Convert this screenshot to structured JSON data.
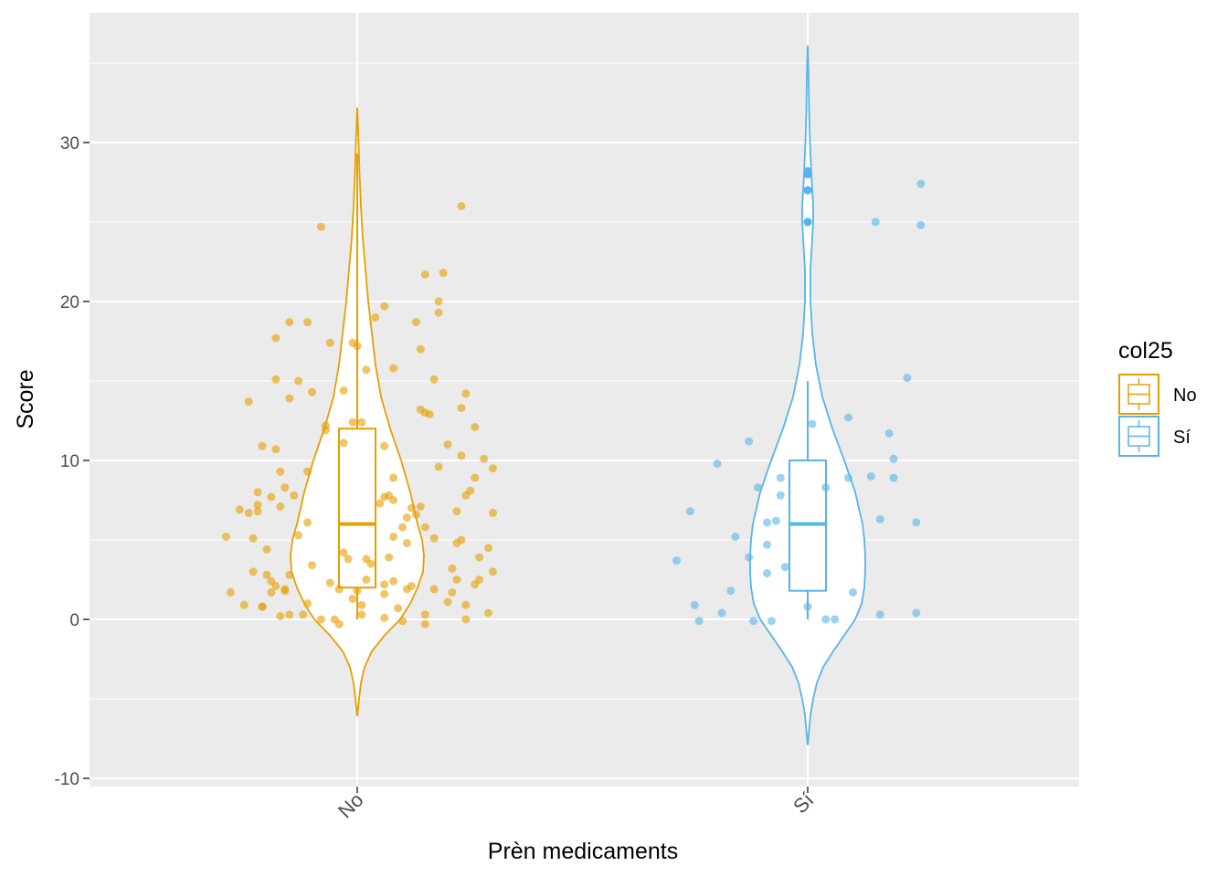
{
  "chart_data": {
    "type": "violin",
    "xlabel": "Prèn medicaments",
    "ylabel": "Score",
    "ylim": [
      -10,
      36
    ],
    "yticks": [
      -10,
      0,
      10,
      20,
      30
    ],
    "categories": [
      "No",
      "Sí"
    ],
    "x_tick_rotation": "45 degrees",
    "grid": true,
    "legend": {
      "title": "col25",
      "position": "right",
      "entries": [
        {
          "label": "No",
          "color": "#E69F00"
        },
        {
          "label": "Sí",
          "color": "#56B4E9"
        }
      ]
    },
    "series": [
      {
        "group": "No",
        "color": "#E69F00",
        "box": {
          "lower_whisker": 0,
          "q1": 2,
          "median": 6,
          "q3": 12,
          "upper_whisker": 29.3
        },
        "violin_range": [
          -6,
          32
        ],
        "points": [
          [
            -0.29,
            5.2
          ],
          [
            -0.28,
            1.7
          ],
          [
            -0.26,
            6.9
          ],
          [
            -0.25,
            0.9
          ],
          [
            -0.24,
            13.7
          ],
          [
            -0.24,
            6.7
          ],
          [
            -0.23,
            3.0
          ],
          [
            -0.23,
            5.1
          ],
          [
            -0.22,
            7.2
          ],
          [
            -0.22,
            6.8
          ],
          [
            -0.22,
            8.0
          ],
          [
            -0.21,
            10.9
          ],
          [
            -0.21,
            0.8
          ],
          [
            -0.21,
            0.8
          ],
          [
            -0.2,
            2.8
          ],
          [
            -0.2,
            4.4
          ],
          [
            -0.19,
            2.4
          ],
          [
            -0.19,
            1.7
          ],
          [
            -0.19,
            7.7
          ],
          [
            -0.18,
            17.7
          ],
          [
            -0.18,
            10.7
          ],
          [
            -0.18,
            2.1
          ],
          [
            -0.18,
            15.1
          ],
          [
            -0.17,
            9.3
          ],
          [
            -0.17,
            0.2
          ],
          [
            -0.17,
            7.1
          ],
          [
            -0.16,
            1.8
          ],
          [
            -0.16,
            8.3
          ],
          [
            -0.16,
            1.9
          ],
          [
            -0.15,
            0.3
          ],
          [
            -0.15,
            13.9
          ],
          [
            -0.15,
            18.7
          ],
          [
            -0.15,
            2.8
          ],
          [
            -0.14,
            7.8
          ],
          [
            -0.13,
            5.3
          ],
          [
            -0.13,
            15.0
          ],
          [
            -0.12,
            0.3
          ],
          [
            -0.11,
            18.7
          ],
          [
            -0.11,
            9.3
          ],
          [
            -0.11,
            6.1
          ],
          [
            -0.11,
            1.0
          ],
          [
            -0.1,
            3.4
          ],
          [
            -0.1,
            14.3
          ],
          [
            -0.08,
            0.0
          ],
          [
            -0.07,
            11.9
          ],
          [
            -0.07,
            12.2
          ],
          [
            -0.06,
            17.4
          ],
          [
            -0.06,
            2.3
          ],
          [
            -0.05,
            0.0
          ],
          [
            -0.04,
            -0.3
          ],
          [
            -0.04,
            1.9
          ],
          [
            -0.03,
            11.1
          ],
          [
            -0.03,
            4.2
          ],
          [
            -0.03,
            14.4
          ],
          [
            -0.02,
            3.8
          ],
          [
            -0.01,
            17.4
          ],
          [
            -0.01,
            12.4
          ],
          [
            -0.01,
            1.3
          ],
          [
            0.0,
            17.2
          ],
          [
            0.0,
            1.8
          ],
          [
            0.01,
            0.3
          ],
          [
            0.01,
            12.4
          ],
          [
            0.01,
            0.9
          ],
          [
            0.02,
            2.5
          ],
          [
            0.02,
            3.8
          ],
          [
            0.02,
            15.7
          ],
          [
            0.03,
            3.5
          ],
          [
            0.04,
            19.0
          ],
          [
            0.05,
            7.3
          ],
          [
            0.06,
            1.6
          ],
          [
            0.06,
            10.9
          ],
          [
            0.06,
            19.7
          ],
          [
            0.06,
            0.1
          ],
          [
            0.06,
            7.7
          ],
          [
            0.06,
            2.2
          ],
          [
            0.07,
            7.8
          ],
          [
            0.07,
            3.9
          ],
          [
            0.08,
            5.2
          ],
          [
            0.08,
            8.9
          ],
          [
            0.08,
            15.8
          ],
          [
            0.08,
            7.5
          ],
          [
            0.08,
            2.4
          ],
          [
            0.09,
            0.7
          ],
          [
            0.1,
            5.8
          ],
          [
            0.1,
            -0.1
          ],
          [
            0.11,
            1.9
          ],
          [
            0.11,
            4.8
          ],
          [
            0.11,
            6.4
          ],
          [
            0.12,
            7.0
          ],
          [
            0.12,
            2.1
          ],
          [
            0.13,
            18.7
          ],
          [
            0.13,
            6.6
          ],
          [
            0.14,
            17.0
          ],
          [
            0.14,
            7.1
          ],
          [
            0.14,
            13.2
          ],
          [
            0.15,
            5.8
          ],
          [
            0.15,
            0.3
          ],
          [
            0.15,
            -0.3
          ],
          [
            0.15,
            21.7
          ],
          [
            0.15,
            13.0
          ],
          [
            0.16,
            12.9
          ],
          [
            0.17,
            15.1
          ],
          [
            0.17,
            1.9
          ],
          [
            0.17,
            5.1
          ],
          [
            0.18,
            9.6
          ],
          [
            0.18,
            20.0
          ],
          [
            0.18,
            19.3
          ],
          [
            0.19,
            21.8
          ],
          [
            0.2,
            1.1
          ],
          [
            0.2,
            11.0
          ],
          [
            0.21,
            3.2
          ],
          [
            0.21,
            1.7
          ],
          [
            0.22,
            2.5
          ],
          [
            0.22,
            4.8
          ],
          [
            0.22,
            6.8
          ],
          [
            0.23,
            26.0
          ],
          [
            0.23,
            5.0
          ],
          [
            0.23,
            13.3
          ],
          [
            0.23,
            10.3
          ],
          [
            0.24,
            0.0
          ],
          [
            0.24,
            0.9
          ],
          [
            0.24,
            14.2
          ],
          [
            0.24,
            7.8
          ],
          [
            0.25,
            8.1
          ],
          [
            0.26,
            12.1
          ],
          [
            0.26,
            8.9
          ],
          [
            0.26,
            2.2
          ],
          [
            0.27,
            2.5
          ],
          [
            0.27,
            3.9
          ],
          [
            0.28,
            10.1
          ],
          [
            0.29,
            4.5
          ],
          [
            0.29,
            0.4
          ],
          [
            0.3,
            9.5
          ],
          [
            0.3,
            3.0
          ],
          [
            0.3,
            6.7
          ],
          [
            -0.08,
            24.7
          ]
        ]
      },
      {
        "group": "Sí",
        "color": "#56B4E9",
        "box": {
          "lower_whisker": 0,
          "q1": 1.8,
          "median": 6,
          "q3": 10,
          "upper_whisker": 15,
          "outliers": [
            25,
            25,
            27,
            27,
            28,
            28.2
          ]
        },
        "violin_range": [
          -8,
          36
        ],
        "points": [
          [
            -0.29,
            3.7
          ],
          [
            -0.26,
            6.8
          ],
          [
            -0.25,
            0.9
          ],
          [
            -0.24,
            -0.1
          ],
          [
            -0.2,
            9.8
          ],
          [
            -0.19,
            0.4
          ],
          [
            -0.17,
            1.8
          ],
          [
            -0.16,
            5.2
          ],
          [
            -0.13,
            11.2
          ],
          [
            -0.13,
            3.9
          ],
          [
            -0.12,
            -0.1
          ],
          [
            -0.11,
            8.3
          ],
          [
            -0.09,
            2.9
          ],
          [
            -0.09,
            4.7
          ],
          [
            -0.09,
            6.1
          ],
          [
            -0.08,
            -0.1
          ],
          [
            -0.07,
            6.2
          ],
          [
            -0.06,
            8.9
          ],
          [
            -0.06,
            7.8
          ],
          [
            -0.05,
            3.3
          ],
          [
            0.0,
            0.8
          ],
          [
            0.01,
            12.3
          ],
          [
            0.04,
            8.3
          ],
          [
            0.04,
            0.0
          ],
          [
            0.06,
            0.0
          ],
          [
            0.09,
            8.9
          ],
          [
            0.09,
            12.7
          ],
          [
            0.1,
            1.7
          ],
          [
            0.14,
            9.0
          ],
          [
            0.15,
            25.0
          ],
          [
            0.16,
            0.3
          ],
          [
            0.16,
            6.3
          ],
          [
            0.18,
            11.7
          ],
          [
            0.19,
            8.9
          ],
          [
            0.19,
            10.1
          ],
          [
            0.22,
            15.2
          ],
          [
            0.24,
            0.4
          ],
          [
            0.24,
            6.1
          ],
          [
            0.25,
            24.8
          ],
          [
            0.25,
            27.4
          ]
        ]
      }
    ]
  }
}
